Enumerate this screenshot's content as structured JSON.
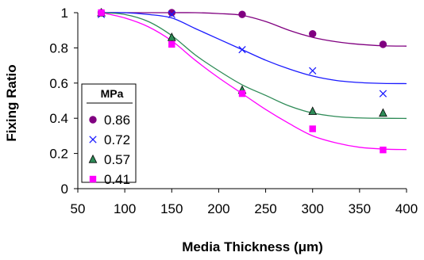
{
  "chart_data": {
    "type": "scatter",
    "xlabel": "Media Thickness (μm)",
    "ylabel": "Fixing Ratio",
    "xlim": [
      50,
      400
    ],
    "ylim": [
      0,
      1
    ],
    "xticks": [
      50,
      100,
      150,
      200,
      250,
      300,
      350,
      400
    ],
    "yticks": [
      0,
      0.2,
      0.4,
      0.6,
      0.8,
      1
    ],
    "grid": false,
    "legend": {
      "title": "MPa",
      "placement": "left"
    },
    "series": [
      {
        "name": "0.86",
        "marker": "circle",
        "color": "#800080",
        "x": [
          75,
          150,
          225,
          300,
          375
        ],
        "y": [
          1.0,
          1.0,
          0.99,
          0.88,
          0.82
        ],
        "fit": {
          "x": [
            75,
            100,
            125,
            150,
            175,
            200,
            225,
            250,
            275,
            300,
            325,
            350,
            375,
            400
          ],
          "y": [
            1.0,
            1.0,
            1.0,
            1.0,
            1.0,
            0.995,
            0.985,
            0.95,
            0.9,
            0.86,
            0.835,
            0.82,
            0.812,
            0.81
          ]
        }
      },
      {
        "name": "0.72",
        "marker": "x",
        "color": "#1a1aff",
        "x": [
          75,
          150,
          225,
          300,
          375
        ],
        "y": [
          0.99,
          0.99,
          0.79,
          0.67,
          0.54
        ],
        "fit": {
          "x": [
            75,
            100,
            125,
            150,
            175,
            200,
            225,
            250,
            275,
            300,
            325,
            350,
            375,
            400
          ],
          "y": [
            1.0,
            1.0,
            0.99,
            0.97,
            0.91,
            0.85,
            0.79,
            0.73,
            0.68,
            0.64,
            0.615,
            0.603,
            0.598,
            0.597
          ]
        }
      },
      {
        "name": "0.57",
        "marker": "triangle",
        "color": "#2e8b57",
        "x": [
          75,
          150,
          225,
          300,
          375
        ],
        "y": [
          1.0,
          0.86,
          0.56,
          0.44,
          0.43
        ],
        "fit": {
          "x": [
            75,
            100,
            125,
            150,
            175,
            200,
            225,
            250,
            275,
            300,
            325,
            350,
            375,
            400
          ],
          "y": [
            1.0,
            0.99,
            0.95,
            0.87,
            0.76,
            0.67,
            0.59,
            0.53,
            0.47,
            0.43,
            0.41,
            0.402,
            0.4,
            0.399
          ]
        }
      },
      {
        "name": "0.41",
        "marker": "square",
        "color": "#ff00ff",
        "x": [
          75,
          150,
          225,
          300,
          375
        ],
        "y": [
          1.0,
          0.82,
          0.54,
          0.34,
          0.22
        ],
        "fit": {
          "x": [
            75,
            100,
            125,
            150,
            175,
            200,
            225,
            250,
            275,
            300,
            325,
            350,
            375,
            400
          ],
          "y": [
            1.0,
            0.97,
            0.92,
            0.84,
            0.73,
            0.63,
            0.54,
            0.45,
            0.37,
            0.3,
            0.26,
            0.235,
            0.225,
            0.222
          ]
        }
      }
    ]
  }
}
